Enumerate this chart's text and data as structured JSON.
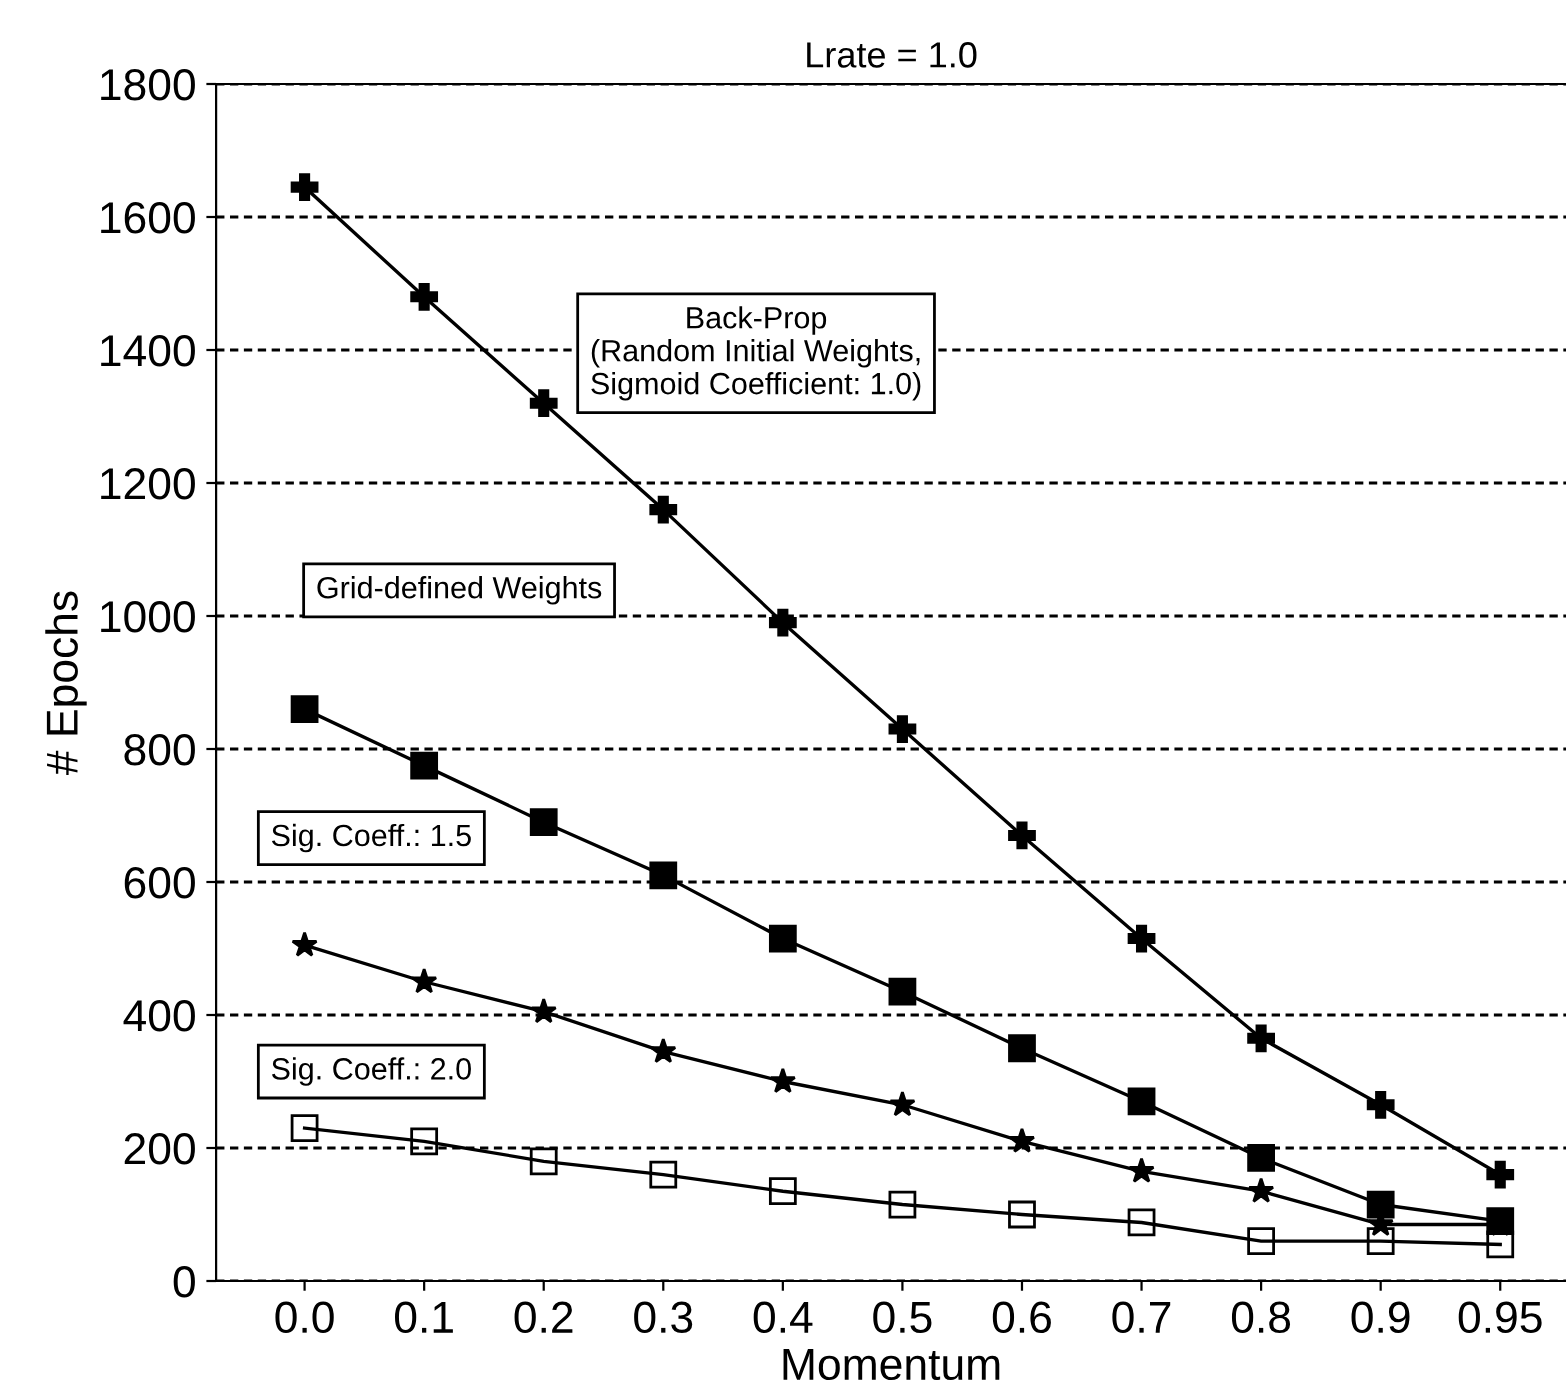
{
  "chart_data": {
    "type": "line",
    "title": "Lrate = 1.0",
    "xlabel": "Momentum",
    "ylabel": "# Epochs",
    "categories": [
      "0.0",
      "0.1",
      "0.2",
      "0.3",
      "0.4",
      "0.5",
      "0.6",
      "0.7",
      "0.8",
      "0.9",
      "0.95"
    ],
    "series": [
      {
        "name": "Back-Prop\n(Random Initial Weights,\nSigmoid Coefficient: 1.0)",
        "color": "#000000",
        "marker": "cross",
        "values": [
          1645,
          1480,
          1320,
          1160,
          990,
          830,
          670,
          515,
          365,
          265,
          160
        ]
      },
      {
        "name": "Grid-defined Weights",
        "color": "#000000",
        "marker": "square",
        "values": [
          860,
          775,
          690,
          610,
          515,
          435,
          350,
          270,
          185,
          115,
          90
        ]
      },
      {
        "name": "Sig. Coeff.: 1.5",
        "color": "#000000",
        "marker": "star",
        "values": [
          505,
          450,
          405,
          345,
          300,
          265,
          210,
          165,
          135,
          85,
          85
        ]
      },
      {
        "name": "Sig. Coeff.: 2.0",
        "color": "#000000",
        "marker": "square",
        "values": [
          230,
          210,
          180,
          160,
          135,
          115,
          100,
          88,
          60,
          60,
          55
        ]
      }
    ],
    "ylim": [
      0,
      1800
    ],
    "yticks": [
      0,
      200,
      400,
      600,
      800,
      1000,
      1200,
      1400,
      1600,
      1800
    ],
    "grid": "y",
    "legend": false,
    "line_style": "solid"
  }
}
